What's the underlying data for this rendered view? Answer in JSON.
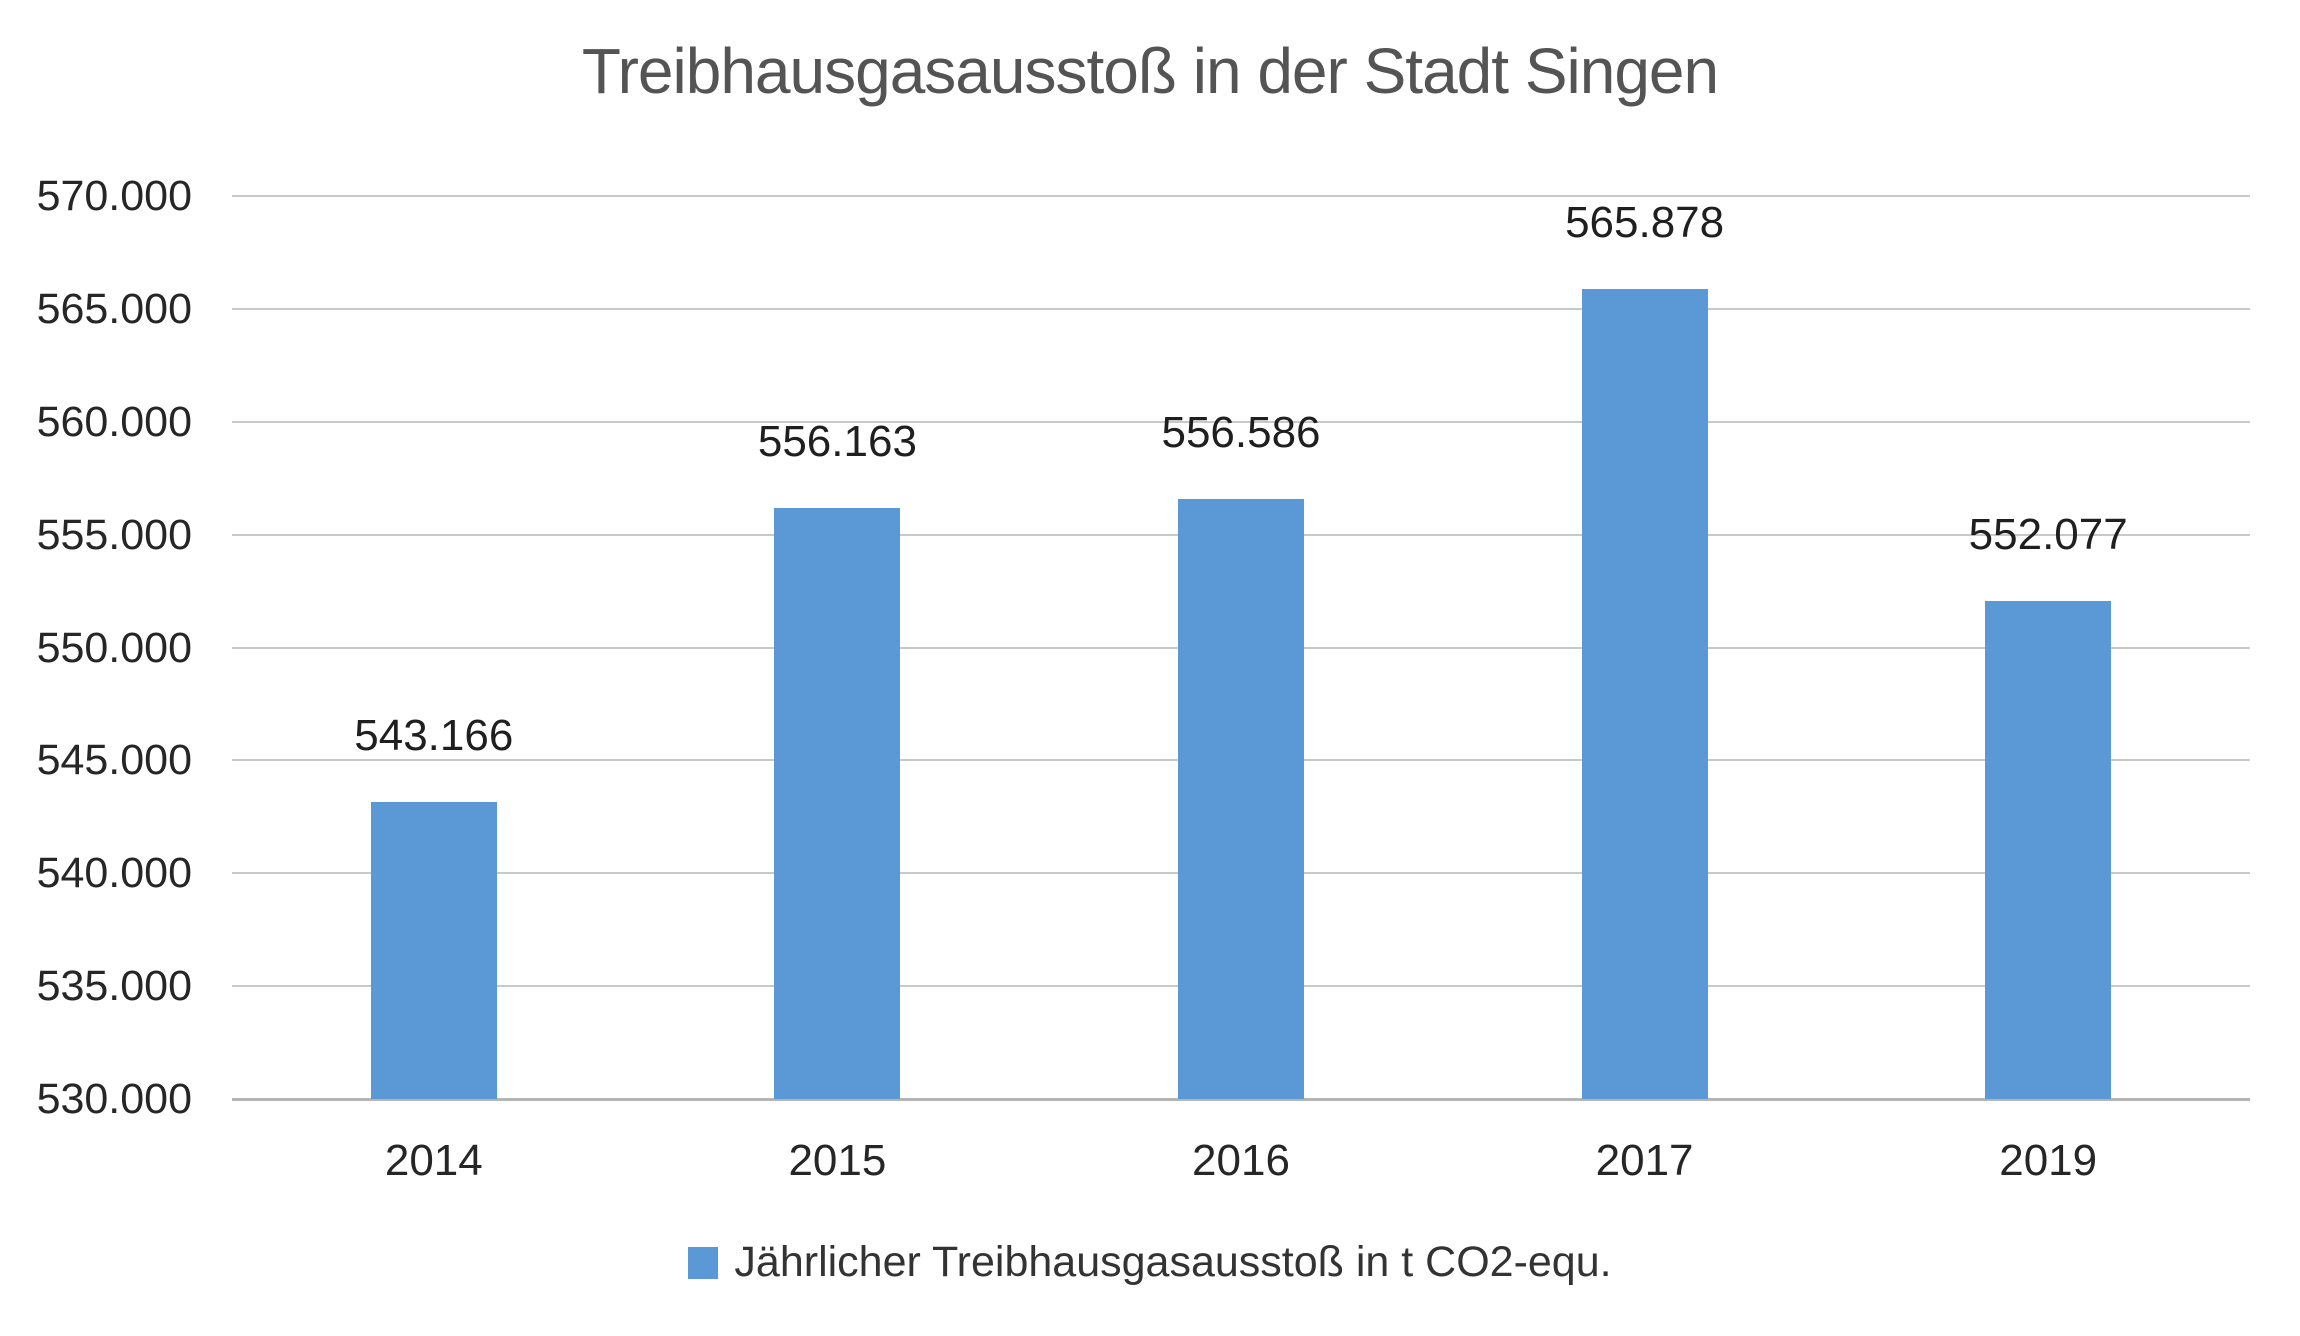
{
  "chart_data": {
    "type": "bar",
    "title": "Treibhausgasausstoß in der Stadt Singen",
    "categories": [
      "2014",
      "2015",
      "2016",
      "2017",
      "2019"
    ],
    "values": [
      543166,
      556163,
      556586,
      565878,
      552077
    ],
    "value_labels": [
      "543.166",
      "556.163",
      "556.586",
      "565.878",
      "552.077"
    ],
    "xlabel": "",
    "ylabel": "",
    "ylim": [
      530000,
      570000
    ],
    "ytick_step": 5000,
    "yticks": [
      {
        "value": 570000,
        "label": "570.000"
      },
      {
        "value": 565000,
        "label": "565.000"
      },
      {
        "value": 560000,
        "label": "560.000"
      },
      {
        "value": 555000,
        "label": "555.000"
      },
      {
        "value": 550000,
        "label": "550.000"
      },
      {
        "value": 545000,
        "label": "545.000"
      },
      {
        "value": 540000,
        "label": "540.000"
      },
      {
        "value": 535000,
        "label": "535.000"
      },
      {
        "value": 530000,
        "label": "530.000"
      }
    ],
    "grid": true,
    "legend": {
      "label": "Jährlicher Treibhausgasausstoß in t CO2-equ.",
      "position": "bottom",
      "marker": "square-icon"
    },
    "colors": {
      "bar": "#5B98D6",
      "title_text": "#545454",
      "axis_text": "#262626",
      "value_label_text": "#1f1f1f",
      "gridline": "#c9c9c9",
      "axis_line": "#b5b5b5",
      "legend_text": "#333333"
    }
  }
}
